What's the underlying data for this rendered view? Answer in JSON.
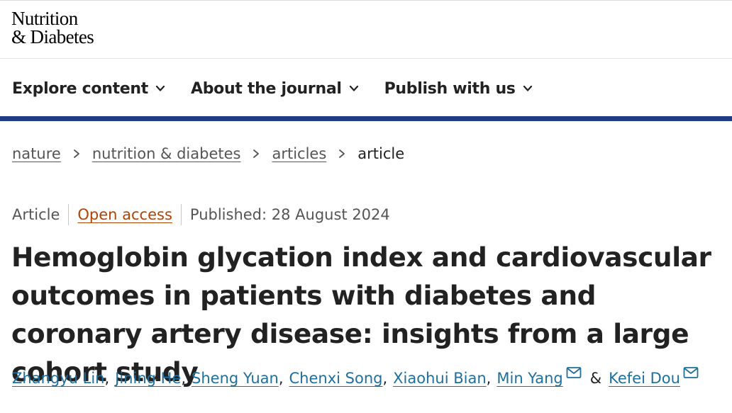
{
  "journal": {
    "logo_line1": "Nutrition",
    "logo_line2": "& Diabetes"
  },
  "nav": {
    "items": [
      {
        "label": "Explore content",
        "icon": "chevron-down-icon"
      },
      {
        "label": "About the journal",
        "icon": "chevron-down-icon"
      },
      {
        "label": "Publish with us",
        "icon": "chevron-down-icon"
      }
    ]
  },
  "breadcrumb": {
    "items": [
      {
        "label": "nature"
      },
      {
        "label": "nutrition & diabetes"
      },
      {
        "label": "articles"
      }
    ],
    "current": "article"
  },
  "article": {
    "type": "Article",
    "access": "Open access",
    "published": "Published: 28 August 2024",
    "title": "Hemoglobin glycation index and cardiovascular outcomes in patients with diabetes and coronary artery disease: insights from a large cohort study",
    "authors": [
      {
        "name": "Zhangyu Lin",
        "separator": ","
      },
      {
        "name": "Jining He",
        "separator": ","
      },
      {
        "name": "Sheng Yuan",
        "separator": ","
      },
      {
        "name": "Chenxi Song",
        "separator": ","
      },
      {
        "name": "Xiaohui Bian",
        "separator": ","
      },
      {
        "name": "Min Yang",
        "separator": ""
      },
      {
        "name": "Kefei Dou",
        "separator": ""
      }
    ],
    "author_connector": "&"
  },
  "colors": {
    "nav_rule": "#223c83",
    "open_access": "#b34300",
    "author_link": "#1f6f9e"
  }
}
